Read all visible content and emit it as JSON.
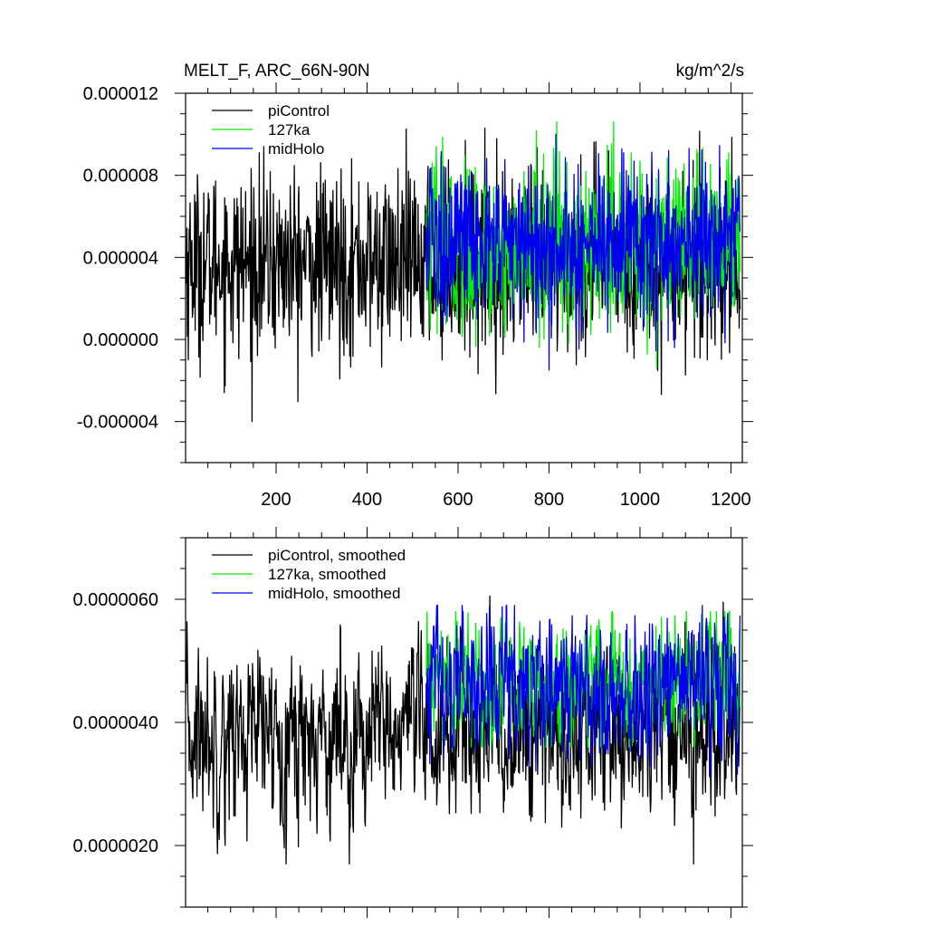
{
  "colors": {
    "piControl": "#000000",
    "127ka": "#00ee00",
    "midHolo": "#0000ee",
    "axis": "#000000",
    "background": "#ffffff"
  },
  "chart_data": [
    {
      "type": "line",
      "title": "MELT_F, ARC_66N-90N",
      "units": "kg/m^2/s",
      "xlabel": "",
      "ylabel": "",
      "xlim": [
        1,
        1225
      ],
      "ylim": [
        -6e-06,
        1.2e-05
      ],
      "x_tick_values": [
        200,
        400,
        600,
        800,
        1000,
        1200
      ],
      "x_tick_labels": [
        "200",
        "400",
        "600",
        "800",
        "1000",
        "1200"
      ],
      "y_tick_values": [
        -4e-06,
        0.0,
        4e-06,
        8e-06,
        1.2e-05
      ],
      "y_tick_labels": [
        "-0.000004",
        "0.000000",
        "0.000004",
        "0.000008",
        "0.000012"
      ],
      "legend_position": "top-left",
      "series": [
        {
          "name": "piControl",
          "color": "#000000",
          "x_range": [
            1,
            1220
          ],
          "mean": 3.7e-06,
          "std": 2.2e-06,
          "min": -4.8e-06,
          "max": 1.14e-05
        },
        {
          "name": "127ka",
          "color": "#00ee00",
          "x_range": [
            530,
            1220
          ],
          "mean": 4.5e-06,
          "std": 2.1e-06,
          "min": -1.8e-06,
          "max": 1.06e-05
        },
        {
          "name": "midHolo",
          "color": "#0000ee",
          "x_range": [
            530,
            1220
          ],
          "mean": 4.7e-06,
          "std": 2e-06,
          "min": -1.5e-06,
          "max": 1.07e-05
        }
      ]
    },
    {
      "type": "line",
      "title": "",
      "xlabel": "",
      "ylabel": "",
      "xlim": [
        1,
        1225
      ],
      "ylim": [
        1e-06,
        7e-06
      ],
      "x_tick_values": [
        200,
        400,
        600,
        800,
        1000,
        1200
      ],
      "x_tick_labels": [],
      "y_tick_values": [
        2e-06,
        4e-06,
        6e-06
      ],
      "y_tick_labels": [
        "0.0000020",
        "0.0000040",
        "0.0000060"
      ],
      "legend_position": "top-left",
      "series": [
        {
          "name": "piControl, smoothed",
          "color": "#000000",
          "x_range": [
            1,
            1220
          ],
          "mean": 3.8e-06,
          "std": 7e-07,
          "min": 1.7e-06,
          "max": 6.2e-06
        },
        {
          "name": "127ka, smoothed",
          "color": "#00ee00",
          "x_range": [
            530,
            1220
          ],
          "mean": 4.6e-06,
          "std": 5e-07,
          "min": 3.6e-06,
          "max": 5.8e-06
        },
        {
          "name": "midHolo, smoothed",
          "color": "#0000ee",
          "x_range": [
            530,
            1220
          ],
          "mean": 4.6e-06,
          "std": 6e-07,
          "min": 3.1e-06,
          "max": 5.9e-06
        }
      ]
    }
  ]
}
